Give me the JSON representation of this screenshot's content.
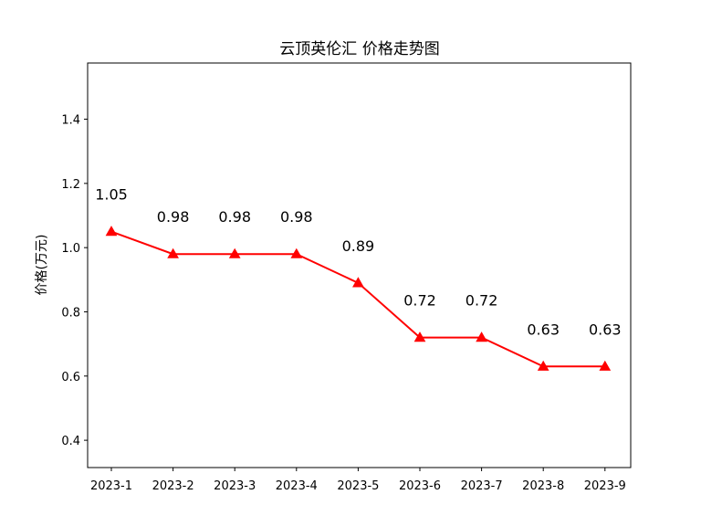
{
  "chart_data": {
    "type": "line",
    "title": "云顶英伦汇 价格走势图",
    "xlabel": "",
    "ylabel": "价格(万元)",
    "categories": [
      "2023-1",
      "2023-2",
      "2023-3",
      "2023-4",
      "2023-5",
      "2023-6",
      "2023-7",
      "2023-8",
      "2023-9"
    ],
    "series": [
      {
        "values": [
          1.05,
          0.98,
          0.98,
          0.98,
          0.89,
          0.72,
          0.72,
          0.63,
          0.63
        ],
        "data_labels": [
          "1.05",
          "0.98",
          "0.98",
          "0.98",
          "0.89",
          "0.72",
          "0.72",
          "0.63",
          "0.63"
        ],
        "color": "#ff0000",
        "marker": "triangle-up"
      }
    ],
    "ylim": [
      0.315,
      1.575
    ],
    "yticks": [
      0.4,
      0.6,
      0.8,
      1.0,
      1.2,
      1.4
    ],
    "ytick_labels": [
      "0.4",
      "0.6",
      "0.8",
      "1.0",
      "1.2",
      "1.4"
    ],
    "grid": false,
    "legend": "none"
  }
}
